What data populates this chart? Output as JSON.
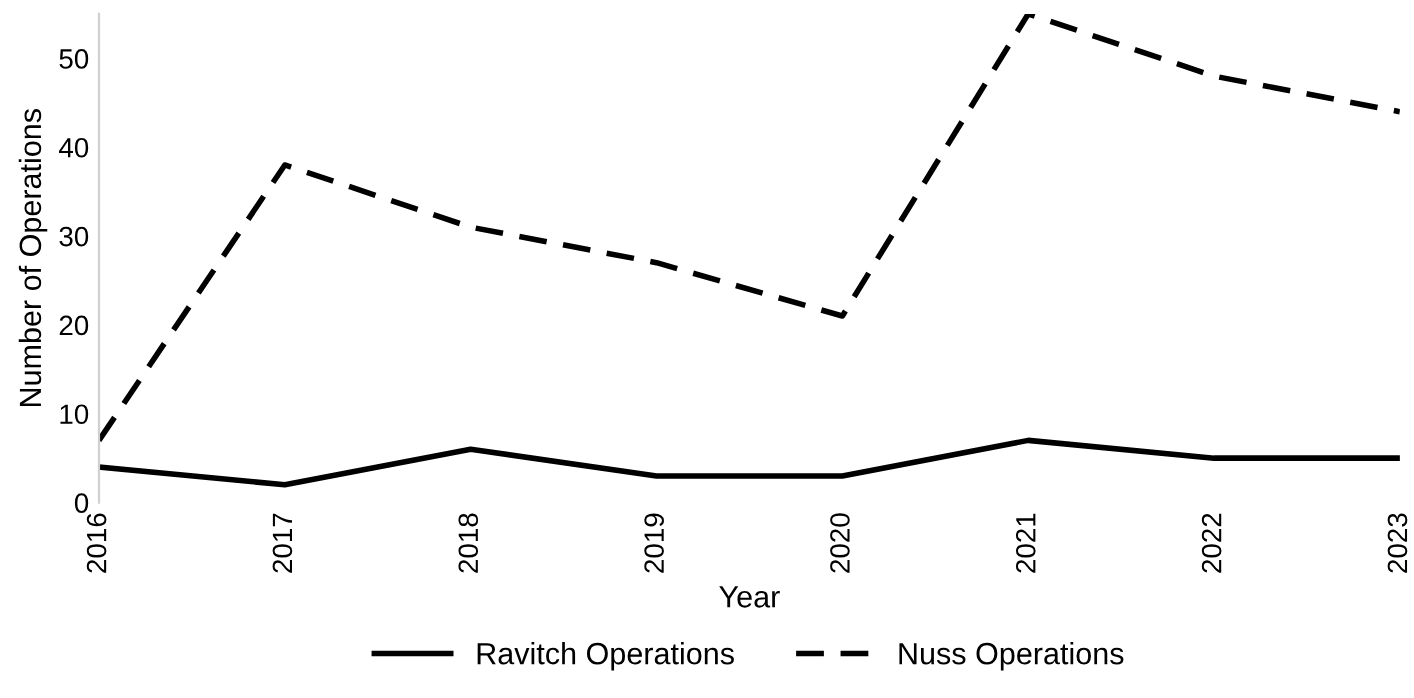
{
  "chart_data": {
    "type": "line",
    "xlabel": "Year",
    "ylabel": "Number of Operations",
    "categories": [
      "2016",
      "2017",
      "2018",
      "2019",
      "2020",
      "2021",
      "2022",
      "2023"
    ],
    "series": [
      {
        "name": "Ravitch Operations",
        "color": "#000000",
        "line_style": "solid",
        "values": [
          4,
          2,
          6,
          3,
          3,
          7,
          5,
          5
        ]
      },
      {
        "name": "Nuss Operations",
        "color": "#000000",
        "line_style": "dashed",
        "values": [
          7,
          38,
          31,
          27,
          21,
          55,
          48,
          44
        ]
      }
    ],
    "ylim": [
      0,
      55
    ],
    "yticks": [
      0,
      10,
      20,
      30,
      40,
      50
    ],
    "grid": false,
    "legend": "bottom"
  }
}
